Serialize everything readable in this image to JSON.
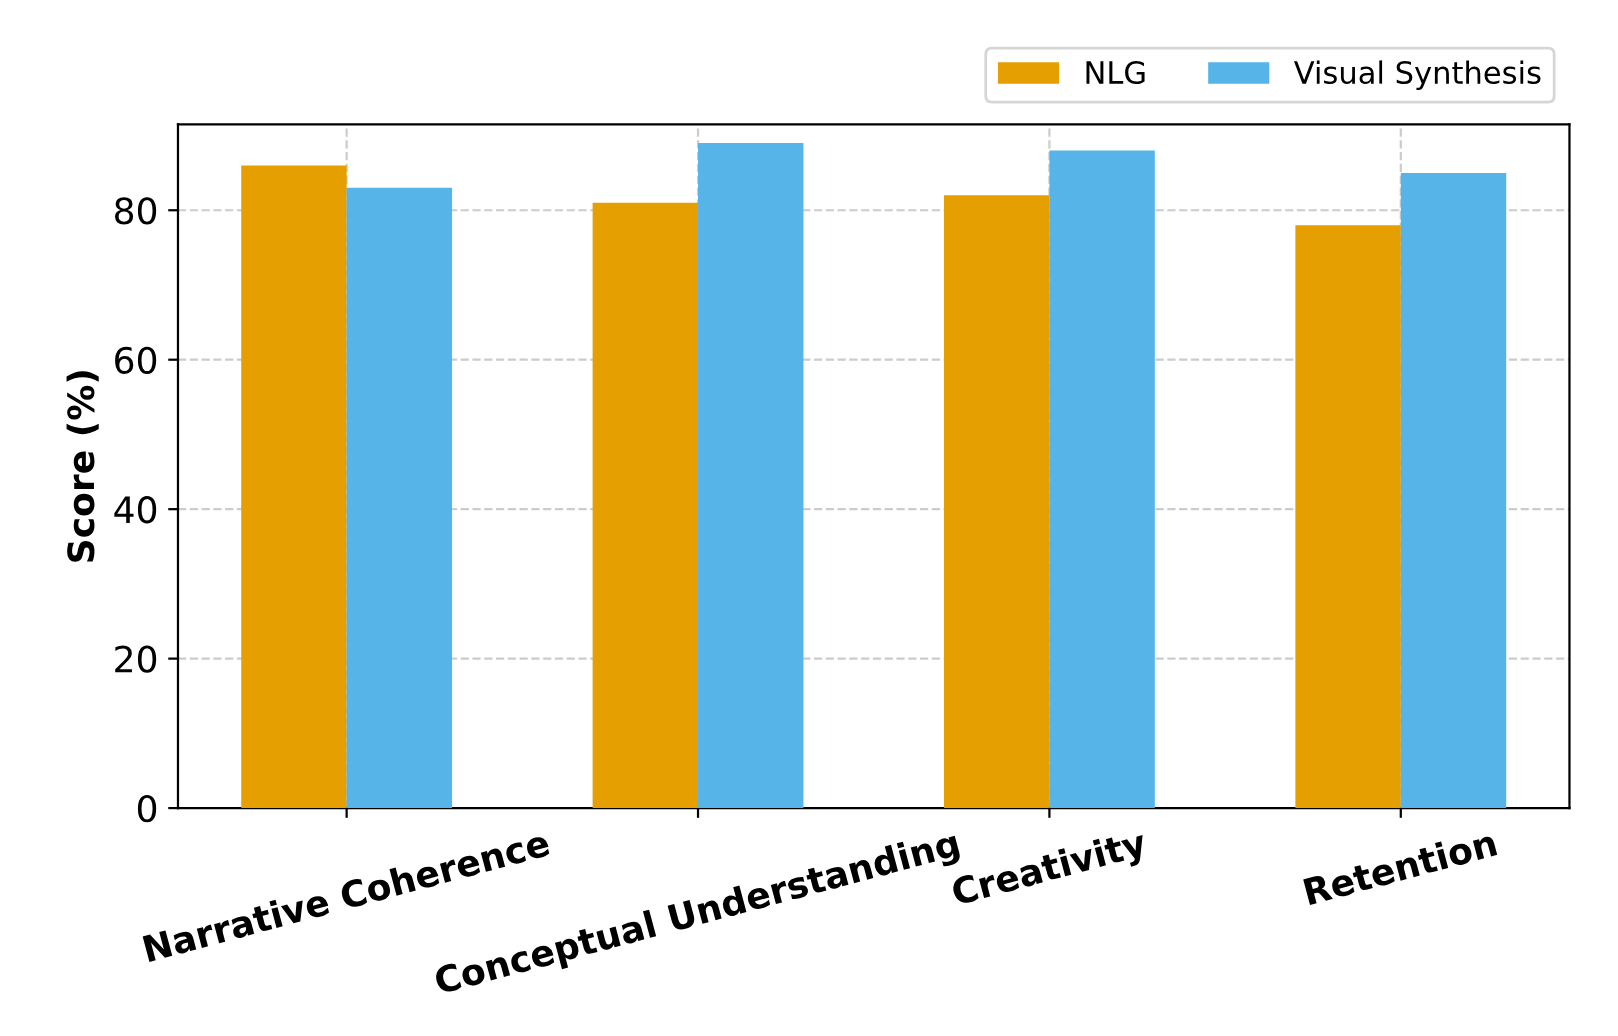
{
  "chart_data": {
    "type": "bar",
    "ylabel": "Score (%)",
    "categories": [
      "Narrative Coherence",
      "Conceptual Understanding",
      "Creativity",
      "Retention"
    ],
    "series": [
      {
        "name": "NLG",
        "color": "#e69f00",
        "values": [
          86,
          81,
          82,
          78
        ]
      },
      {
        "name": "Visual Synthesis",
        "color": "#56b4e9",
        "values": [
          83,
          89,
          88,
          85
        ]
      }
    ],
    "ylim": [
      0,
      91.5
    ],
    "yticks": [
      0,
      20,
      40,
      60,
      80
    ],
    "grid": true,
    "legend": "top right"
  }
}
